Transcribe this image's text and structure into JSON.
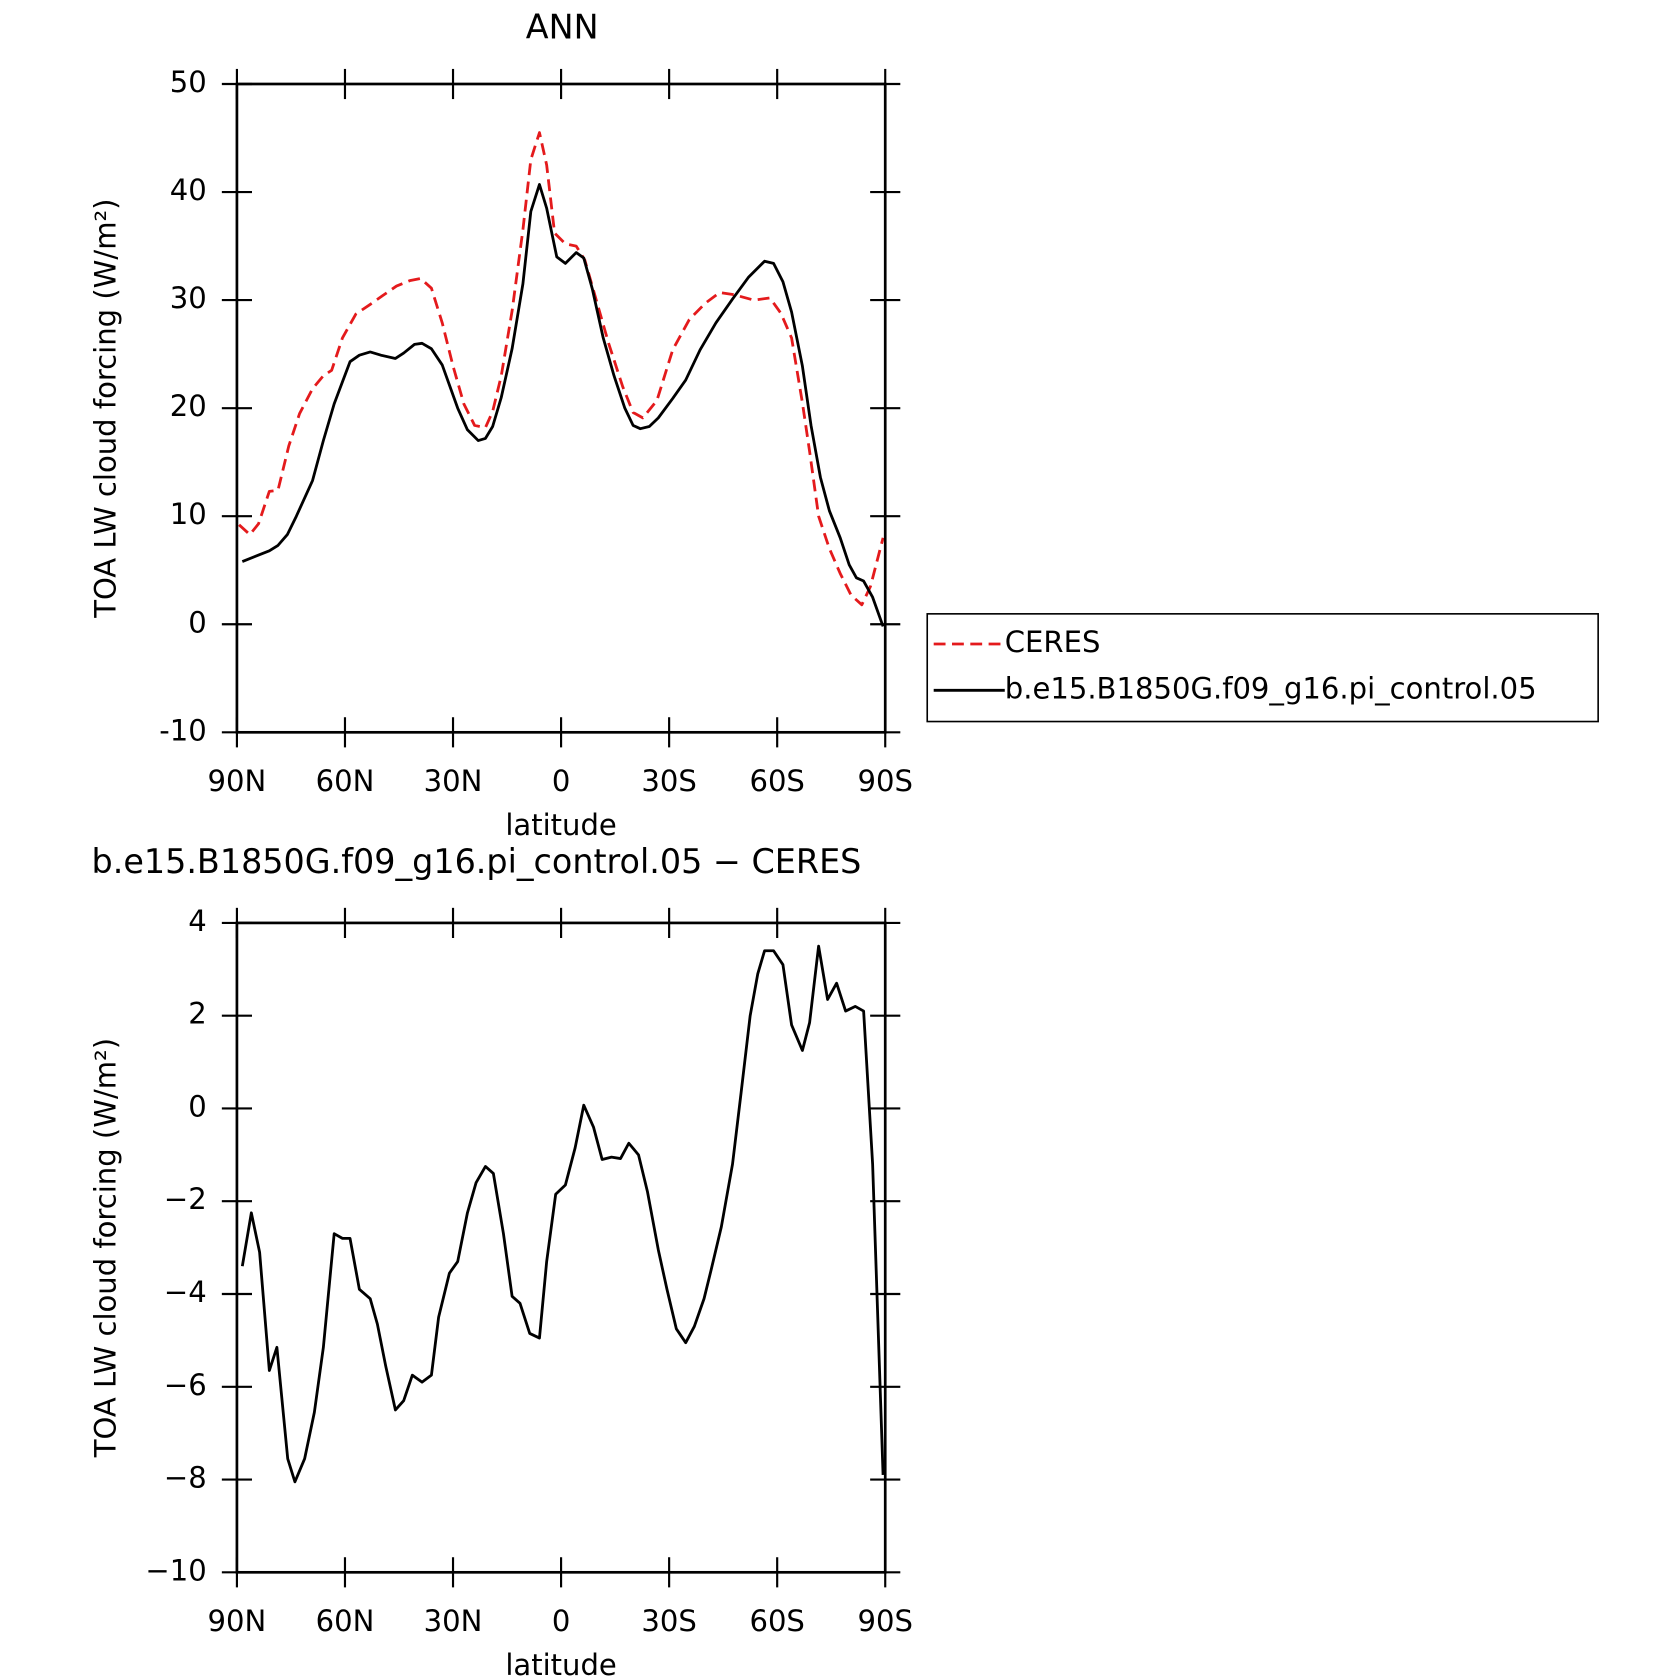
{
  "chart_data": [
    {
      "type": "line",
      "title": "ANN",
      "xlabel": "latitude",
      "ylabel": "TOA LW cloud forcing (W/m²)",
      "xlim": [
        90,
        -90
      ],
      "ylim": [
        -10,
        50
      ],
      "xticks": [
        {
          "value": 90,
          "label": "90N"
        },
        {
          "value": 60,
          "label": "60N"
        },
        {
          "value": 30,
          "label": "30N"
        },
        0,
        {
          "value": -30,
          "label": "30S"
        },
        {
          "value": -60,
          "label": "60S"
        },
        {
          "value": -90,
          "label": "90S"
        }
      ],
      "yticks": [
        -10,
        0,
        10,
        20,
        30,
        40,
        50
      ],
      "legend": "right",
      "series": [
        {
          "name": "CERES",
          "color": "#e41a1c",
          "style": "dashed",
          "x": [
            89.4,
            86.4,
            84,
            81,
            78.6,
            75.6,
            72.6,
            69,
            66,
            63.7,
            60.7,
            57,
            53,
            49.6,
            45.7,
            42,
            39,
            36,
            33,
            30,
            27,
            24,
            21,
            19,
            16.6,
            13.6,
            10.6,
            8.4,
            6,
            4,
            1.8,
            -1.2,
            -4.2,
            -6.6,
            -10.2,
            -13.2,
            -17.1,
            -20,
            -22.7,
            -26.6,
            -31,
            -35.6,
            -40,
            -44,
            -48,
            -53.5,
            -58,
            -61,
            -64,
            -67,
            -69,
            -71.5,
            -74.5,
            -77.5,
            -80.5,
            -83.5,
            -85.9,
            -89.4
          ],
          "values": [
            9.2,
            8.3,
            9.3,
            12.3,
            12.4,
            16.5,
            19.5,
            21.8,
            23,
            23.5,
            26.5,
            28.7,
            29.6,
            30.4,
            31.3,
            31.8,
            32,
            31.1,
            27.9,
            23.9,
            20.4,
            18.4,
            18.2,
            19.7,
            23,
            29,
            36.5,
            43,
            45.5,
            42.5,
            36.2,
            35.2,
            35,
            33.7,
            29.5,
            26,
            22,
            19.6,
            19.1,
            20.7,
            25.4,
            28.2,
            29.7,
            30.7,
            30.5,
            30,
            30.2,
            28.8,
            26.5,
            20.5,
            16,
            10,
            7,
            4.7,
            2.7,
            1.8,
            3.5,
            8
          ]
        },
        {
          "name": "b.e15.B1850G.f09_g16.pi_control.05",
          "color": "#000000",
          "style": "solid",
          "x": [
            88.5,
            84,
            81,
            78.6,
            76,
            73.5,
            69,
            66,
            63,
            58.6,
            56,
            53,
            50,
            46,
            43.7,
            40.7,
            38.6,
            36,
            33,
            28.7,
            26,
            23,
            21,
            19,
            16.6,
            13.6,
            10.6,
            8.4,
            6,
            4,
            1.2,
            -1.2,
            -4.2,
            -6.3,
            -8.7,
            -11.7,
            -14.7,
            -17.7,
            -20,
            -22,
            -24.5,
            -27,
            -31,
            -34.6,
            -38.6,
            -43,
            -47.6,
            -52,
            -56.5,
            -59,
            -61.6,
            -64,
            -67,
            -69.4,
            -72,
            -74.5,
            -77.5,
            -80,
            -82,
            -84,
            -86.5,
            -89.4
          ],
          "values": [
            5.8,
            6.4,
            6.8,
            7.3,
            8.3,
            10,
            13.3,
            17,
            20.4,
            24.3,
            24.9,
            25.2,
            24.9,
            24.6,
            25.1,
            25.9,
            26,
            25.5,
            24,
            20,
            18,
            17,
            17.2,
            18.3,
            21,
            25.5,
            31.5,
            38.2,
            40.7,
            38.5,
            34,
            33.4,
            34.4,
            33.9,
            31,
            26.5,
            23,
            20,
            18.4,
            18.1,
            18.3,
            19.1,
            20.9,
            22.6,
            25.4,
            27.9,
            30.1,
            32.1,
            33.6,
            33.4,
            31.7,
            28.9,
            23.9,
            18.4,
            13.6,
            10.5,
            8,
            5.5,
            4.3,
            4,
            2.5,
            -0.2
          ]
        }
      ]
    },
    {
      "type": "line",
      "title": "b.e15.B1850G.f09_g16.pi_control.05 − CERES",
      "xlabel": "latitude",
      "ylabel": "TOA LW cloud forcing (W/m²)",
      "xlim": [
        90,
        -90
      ],
      "ylim": [
        -10,
        4
      ],
      "xticks": [
        {
          "value": 90,
          "label": "90N"
        },
        {
          "value": 60,
          "label": "60N"
        },
        {
          "value": 30,
          "label": "30N"
        },
        0,
        {
          "value": -30,
          "label": "30S"
        },
        {
          "value": -60,
          "label": "60S"
        },
        {
          "value": -90,
          "label": "90S"
        }
      ],
      "yticks": [
        {
          "value": -10,
          "label": "−10"
        },
        {
          "value": -8,
          "label": "−8"
        },
        {
          "value": -6,
          "label": "−6"
        },
        {
          "value": -4,
          "label": "−4"
        },
        {
          "value": -2,
          "label": "−2"
        },
        0,
        2,
        4
      ],
      "series": [
        {
          "color": "#000000",
          "style": "solid",
          "x": [
            88.5,
            86,
            83.7,
            81,
            78.9,
            75.9,
            73.9,
            71.2,
            68.5,
            66,
            63,
            60.7,
            58.6,
            56,
            53,
            51,
            48.7,
            46,
            43.7,
            41.3,
            38.6,
            36,
            34,
            31,
            28.7,
            26,
            23.6,
            21,
            18.8,
            16,
            13.6,
            11.4,
            8.7,
            6,
            4,
            1.5,
            -1.2,
            -3.9,
            -6.3,
            -9,
            -11.4,
            -14,
            -16.5,
            -18.8,
            -21.5,
            -24,
            -27,
            -29.4,
            -32,
            -34.6,
            -37,
            -39.7,
            -41.6,
            -44.5,
            -47.6,
            -50,
            -52.5,
            -54.6,
            -56.5,
            -59,
            -61.6,
            -64,
            -67,
            -69,
            -71.5,
            -74,
            -76.5,
            -79,
            -81.7,
            -84,
            -86.5,
            -89.4
          ],
          "values": [
            -3.4,
            -2.25,
            -3.1,
            -5.65,
            -5.15,
            -7.55,
            -8.05,
            -7.55,
            -6.55,
            -5.15,
            -2.7,
            -2.8,
            -2.8,
            -3.9,
            -4.1,
            -4.65,
            -5.55,
            -6.5,
            -6.3,
            -5.75,
            -5.9,
            -5.75,
            -4.5,
            -3.55,
            -3.3,
            -2.25,
            -1.6,
            -1.25,
            -1.4,
            -2.7,
            -4.05,
            -4.2,
            -4.85,
            -4.95,
            -3.3,
            -1.85,
            -1.65,
            -0.85,
            0.07,
            -0.4,
            -1.1,
            -1.05,
            -1.08,
            -0.75,
            -1.0,
            -1.8,
            -3.05,
            -3.9,
            -4.75,
            -5.05,
            -4.7,
            -4.1,
            -3.5,
            -2.55,
            -1.2,
            0.35,
            2.0,
            2.9,
            3.4,
            3.4,
            3.1,
            1.8,
            1.25,
            1.85,
            3.5,
            2.35,
            2.7,
            2.1,
            2.2,
            2.1,
            -1.2,
            -7.9
          ]
        }
      ]
    }
  ]
}
